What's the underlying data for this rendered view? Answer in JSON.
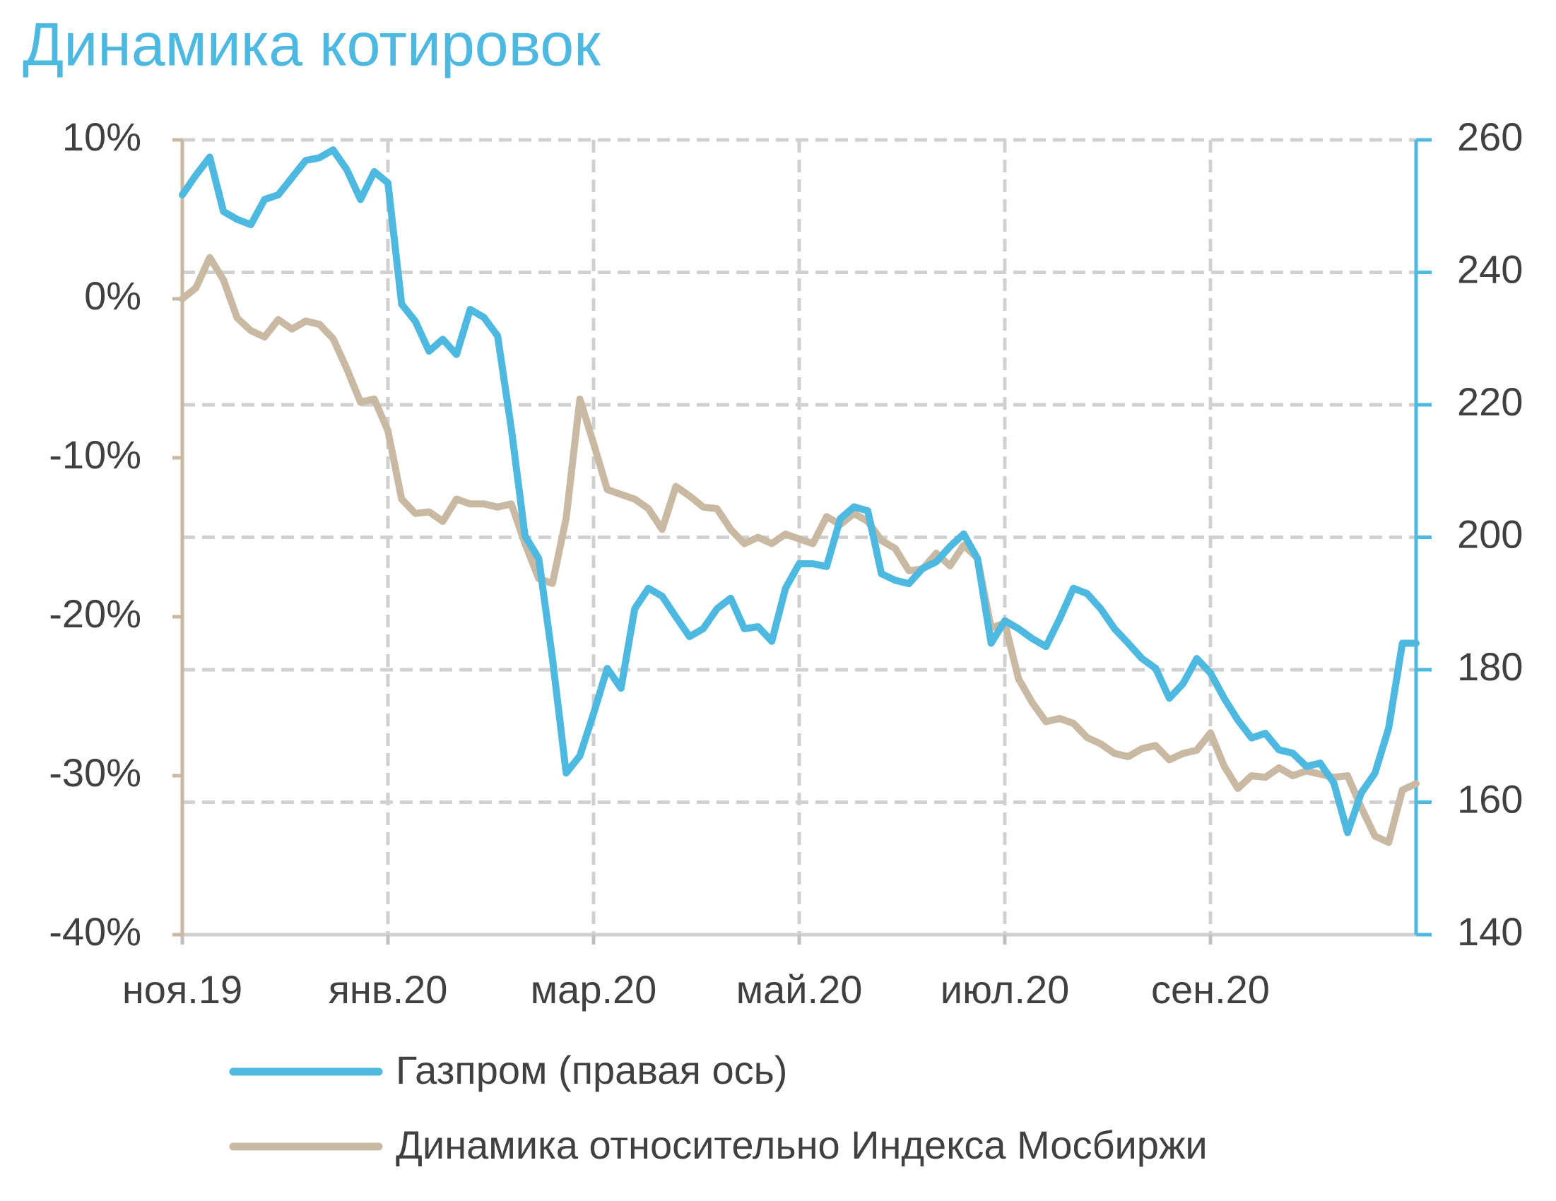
{
  "chart_data": {
    "type": "line",
    "title": "Динамика котировок",
    "categories": [
      "ноя.19",
      null,
      null,
      null,
      null,
      null,
      null,
      null,
      null,
      null,
      null,
      null,
      null,
      null,
      null,
      "янв.20",
      null,
      null,
      null,
      null,
      null,
      null,
      null,
      null,
      null,
      null,
      null,
      null,
      null,
      null,
      "мар.20",
      null,
      null,
      null,
      null,
      null,
      null,
      null,
      null,
      null,
      null,
      null,
      null,
      null,
      null,
      "май.20",
      null,
      null,
      null,
      null,
      null,
      null,
      null,
      null,
      null,
      null,
      null,
      null,
      null,
      null,
      "июл.20",
      null,
      null,
      null,
      null,
      null,
      null,
      null,
      null,
      null,
      null,
      null,
      null,
      null,
      null,
      "сен.20",
      null,
      null,
      null,
      null,
      null,
      null,
      null,
      null,
      null,
      null,
      null,
      null,
      null,
      null,
      null
    ],
    "series": [
      {
        "name": "Газпром (правая ось)",
        "color": "#4db8e0",
        "axis": "y2",
        "values": [
          251.7,
          254.7,
          257.4,
          249.2,
          248.0,
          247.2,
          251.0,
          251.7,
          254.3,
          256.9,
          257.3,
          258.5,
          255.5,
          251.0,
          255.2,
          253.5,
          235.2,
          232.6,
          228.1,
          229.9,
          227.6,
          234.4,
          233.2,
          230.4,
          216.4,
          200.2,
          196.8,
          181.7,
          164.4,
          167.0,
          173.4,
          180.2,
          177.2,
          189.2,
          192.3,
          191.1,
          188.0,
          185.0,
          186.2,
          189.2,
          190.8,
          186.2,
          186.5,
          184.3,
          192.3,
          196.0,
          196.0,
          195.6,
          202.8,
          204.6,
          204.0,
          194.5,
          193.5,
          193.0,
          195.3,
          196.3,
          198.6,
          200.5,
          196.8,
          184.0,
          187.4,
          186.2,
          184.7,
          183.5,
          187.7,
          192.3,
          191.5,
          189.2,
          186.2,
          184.0,
          181.7,
          180.2,
          175.7,
          177.9,
          181.7,
          179.5,
          175.7,
          172.4,
          169.7,
          170.4,
          167.9,
          167.4,
          165.4,
          165.9,
          162.9,
          155.4,
          161.4,
          164.4,
          171.2,
          184.0,
          184.0
        ]
      },
      {
        "name": "Динамика относительно Индекса Мосбиржи",
        "color": "#c9b9a2",
        "axis": "y",
        "values": [
          0.0,
          0.7,
          2.6,
          1.2,
          -1.2,
          -2.0,
          -2.4,
          -1.3,
          -1.9,
          -1.4,
          -1.6,
          -2.5,
          -4.4,
          -6.5,
          -6.3,
          -8.3,
          -12.6,
          -13.5,
          -13.4,
          -14.0,
          -12.6,
          -12.9,
          -12.9,
          -13.1,
          -12.9,
          -15.4,
          -17.6,
          -17.9,
          -13.8,
          -6.3,
          -9.1,
          -12.0,
          -12.3,
          -12.6,
          -13.2,
          -14.5,
          -11.8,
          -12.4,
          -13.1,
          -13.2,
          -14.5,
          -15.4,
          -15.0,
          -15.4,
          -14.8,
          -15.1,
          -15.4,
          -13.7,
          -14.2,
          -13.5,
          -14.0,
          -15.2,
          -15.7,
          -17.1,
          -17.0,
          -16.0,
          -16.8,
          -15.5,
          -16.3,
          -20.7,
          -20.4,
          -23.9,
          -25.4,
          -26.6,
          -26.4,
          -26.7,
          -27.6,
          -28.0,
          -28.6,
          -28.8,
          -28.3,
          -28.1,
          -29.0,
          -28.6,
          -28.4,
          -27.3,
          -29.4,
          -30.8,
          -30.0,
          -30.1,
          -29.5,
          -30.0,
          -29.7,
          -29.9,
          -30.1,
          -30.0,
          -32.0,
          -33.8,
          -34.2,
          -30.9,
          -30.5
        ]
      }
    ],
    "ylim": [
      -40,
      10
    ],
    "yticks": [
      {
        "value": -40,
        "label": "-40%"
      },
      {
        "value": -30,
        "label": "-30%"
      },
      {
        "value": -20,
        "label": "-20%"
      },
      {
        "value": -10,
        "label": "-10%"
      },
      {
        "value": 0,
        "label": "0%"
      },
      {
        "value": 10,
        "label": "10%"
      }
    ],
    "y2lim": [
      140,
      260
    ],
    "y2ticks": [
      140,
      160,
      180,
      200,
      220,
      240,
      260
    ],
    "ycolor": "#c9b9a2",
    "y2color": "#4db8e0",
    "title_color": "#4db8e0",
    "grid": true
  }
}
